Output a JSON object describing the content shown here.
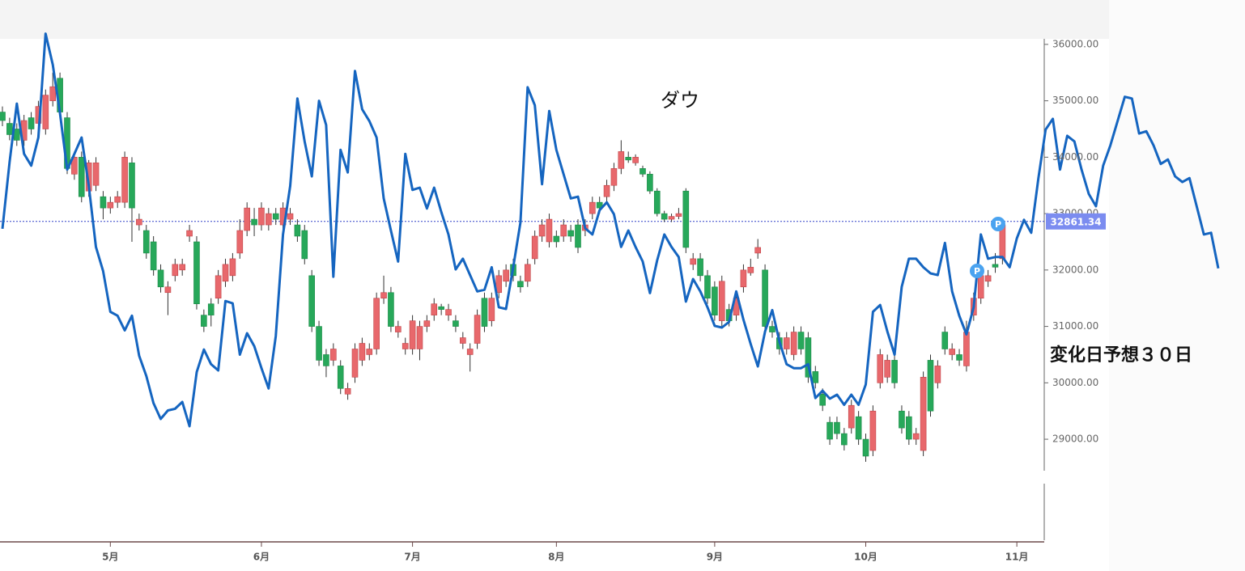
{
  "chart_data": {
    "type": "candlestick",
    "title": "ダウ",
    "annotation": "変化日予想３０日",
    "up_color": "#e8686c",
    "down_color": "#27a85a",
    "ylim": [
      27180,
      36070
    ],
    "yticks": [
      {
        "value": 29000,
        "label": "29000.00"
      },
      {
        "value": 30000,
        "label": "30000.00"
      },
      {
        "value": 31000,
        "label": "31000.00"
      },
      {
        "value": 32000,
        "label": "32000.00"
      },
      {
        "value": 33000,
        "label": "33000.00"
      },
      {
        "value": 34000,
        "label": "34000.00"
      },
      {
        "value": 35000,
        "label": "35000.00"
      },
      {
        "value": 36000,
        "label": "36000.00"
      }
    ],
    "last_price": {
      "value": 32861.34,
      "color": "#7b8cf0"
    },
    "markers": [
      "P",
      "P"
    ],
    "categories": [
      null,
      null,
      null,
      null,
      null,
      null,
      null,
      null,
      null,
      null,
      null,
      null,
      null,
      null,
      null,
      "5月",
      null,
      null,
      null,
      null,
      null,
      null,
      null,
      null,
      null,
      null,
      null,
      null,
      null,
      null,
      null,
      null,
      null,
      null,
      null,
      null,
      "6月",
      null,
      null,
      null,
      null,
      null,
      null,
      null,
      null,
      null,
      null,
      null,
      null,
      null,
      null,
      null,
      null,
      null,
      null,
      null,
      null,
      "7月",
      null,
      null,
      null,
      null,
      null,
      null,
      null,
      null,
      null,
      null,
      null,
      null,
      null,
      null,
      null,
      null,
      null,
      null,
      null,
      "8月",
      null,
      null,
      null,
      null,
      null,
      null,
      null,
      null,
      null,
      null,
      null,
      null,
      null,
      null,
      null,
      null,
      null,
      null,
      null,
      null,
      null,
      "9月",
      null,
      null,
      null,
      null,
      null,
      null,
      null,
      null,
      null,
      null,
      null,
      null,
      null,
      null,
      null,
      null,
      null,
      null,
      null,
      null,
      "10月",
      null,
      null,
      null,
      null,
      null,
      null,
      null,
      null,
      null,
      null,
      null,
      null,
      null,
      null,
      null,
      null,
      null,
      null,
      null,
      null,
      "11月",
      null,
      null,
      null,
      null,
      null,
      null,
      null,
      null,
      null,
      null,
      null,
      null,
      null,
      null,
      null,
      null,
      null,
      null,
      null,
      null,
      null,
      null,
      null,
      null,
      null,
      null,
      null,
      null
    ],
    "open": [
      34800,
      34600,
      34500,
      34300,
      34700,
      34600,
      34500,
      35000,
      35400,
      34700,
      33700,
      34000,
      33400,
      33500,
      33300,
      33100,
      33200,
      33200,
      33900,
      32800,
      32700,
      32500,
      32000,
      31600,
      31900,
      32000,
      32600,
      32500,
      31200,
      31400,
      31500,
      31800,
      31900,
      32300,
      32700,
      32900,
      32800,
      32800,
      33000,
      32800,
      32900,
      32800,
      32700,
      31900,
      31000,
      30500,
      30400,
      30300,
      29800,
      30100,
      30400,
      30500,
      30600,
      31500,
      31600,
      30900,
      30600,
      30600,
      30600,
      31000,
      31200,
      31350,
      31200,
      31100,
      30700,
      30500,
      30700,
      31500,
      31100,
      31600,
      31800,
      32100,
      31800,
      31800,
      32200,
      32600,
      32500,
      32600,
      32600,
      32700,
      32800,
      32700,
      33000,
      33200,
      33300,
      33500,
      33800,
      34000,
      33900,
      33800,
      33700,
      33400,
      33000,
      32900,
      32950,
      33400,
      32100,
      32200,
      31900,
      31700,
      31100,
      31300,
      31200,
      31700,
      31950,
      32300,
      32000,
      31000,
      30800,
      30600,
      30500,
      30900,
      30800,
      30200,
      29800,
      29300,
      29300,
      29100,
      29200,
      29400,
      29000,
      28800,
      30000,
      30100,
      30400,
      29500,
      29400,
      29000,
      28800,
      30400,
      30000,
      30900,
      30500,
      30500,
      30300,
      31200,
      31500,
      31800,
      32100,
      32200,
      null,
      null,
      null,
      null,
      null,
      null,
      null,
      null,
      null,
      null,
      null,
      null,
      null,
      null,
      null,
      null,
      null,
      null,
      null,
      null,
      null,
      null,
      null,
      null,
      null,
      null,
      null,
      null,
      null,
      null
    ],
    "high": [
      34900,
      34700,
      34600,
      34750,
      34800,
      35000,
      35200,
      35500,
      35500,
      34800,
      34100,
      34100,
      33950,
      34000,
      33400,
      33300,
      33400,
      34100,
      34000,
      33000,
      32800,
      32600,
      32100,
      31800,
      32200,
      32200,
      32800,
      32600,
      31300,
      31500,
      32000,
      32200,
      32300,
      32900,
      33200,
      33100,
      33200,
      33100,
      33100,
      33200,
      33100,
      32900,
      32800,
      32000,
      31100,
      30600,
      30700,
      30400,
      30000,
      30700,
      30800,
      30700,
      31600,
      31900,
      31700,
      31100,
      30800,
      31200,
      31100,
      31200,
      31500,
      31400,
      31400,
      31200,
      30900,
      30700,
      31300,
      31600,
      31600,
      32000,
      32100,
      32200,
      31900,
      32200,
      32700,
      32900,
      33000,
      32700,
      32900,
      32800,
      32900,
      32900,
      33300,
      33300,
      33600,
      33900,
      34300,
      34100,
      34050,
      33850,
      33750,
      33450,
      33050,
      33000,
      33100,
      33450,
      32300,
      32300,
      32000,
      31800,
      31900,
      31400,
      31600,
      32100,
      32200,
      32550,
      32100,
      31100,
      30900,
      30900,
      31000,
      31000,
      30900,
      30300,
      29900,
      29400,
      29400,
      29200,
      29700,
      29500,
      29100,
      29600,
      30600,
      30500,
      30500,
      29600,
      29500,
      29200,
      30200,
      30500,
      30400,
      31000,
      30700,
      30600,
      31100,
      31600,
      32000,
      32000,
      32300,
      32900,
      null,
      null,
      null,
      null,
      null,
      null,
      null,
      null,
      null,
      null,
      null,
      null,
      null,
      null,
      null,
      null,
      null,
      null,
      null,
      null,
      null,
      null,
      null,
      null,
      null,
      null,
      null,
      null,
      null,
      null
    ],
    "low": [
      34550,
      34300,
      34200,
      34200,
      34400,
      34500,
      34400,
      34900,
      34700,
      33700,
      33600,
      33200,
      33300,
      33400,
      32900,
      33000,
      33100,
      33100,
      32500,
      32700,
      32200,
      31900,
      31600,
      31200,
      31800,
      31900,
      32500,
      31300,
      30900,
      31000,
      31400,
      31700,
      31800,
      32200,
      32600,
      32600,
      32700,
      32700,
      32800,
      32700,
      32800,
      32500,
      32100,
      30900,
      30300,
      30100,
      30300,
      29800,
      29700,
      30000,
      30300,
      30400,
      30500,
      31400,
      30900,
      30800,
      30500,
      30500,
      30400,
      30900,
      31100,
      31200,
      31100,
      30900,
      30600,
      30200,
      30600,
      30900,
      31000,
      31500,
      31700,
      31800,
      31600,
      31700,
      32100,
      32500,
      32400,
      32400,
      32500,
      32500,
      32300,
      32600,
      32900,
      33000,
      33200,
      33400,
      33700,
      33900,
      33850,
      33650,
      33350,
      32950,
      32850,
      32850,
      32900,
      32300,
      32000,
      31800,
      31400,
      31100,
      31000,
      31000,
      31100,
      31600,
      31900,
      32200,
      30900,
      30800,
      30500,
      30500,
      30400,
      30500,
      30000,
      29900,
      29500,
      28900,
      29000,
      28800,
      29100,
      28900,
      28600,
      28700,
      29900,
      30000,
      29900,
      29100,
      28900,
      28900,
      28700,
      29400,
      29900,
      30500,
      30400,
      30300,
      30200,
      31100,
      31400,
      31700,
      31950,
      32100,
      null,
      null,
      null,
      null,
      null,
      null,
      null,
      null,
      null,
      null,
      null,
      null,
      null,
      null,
      null,
      null,
      null,
      null,
      null,
      null,
      null,
      null,
      null,
      null,
      null,
      null,
      null,
      null,
      null,
      null
    ],
    "close": [
      34650,
      34400,
      34300,
      34650,
      34500,
      34900,
      35100,
      35250,
      34800,
      33800,
      34000,
      33300,
      33900,
      33900,
      33100,
      33200,
      33300,
      34000,
      33100,
      32900,
      32300,
      32000,
      31700,
      31700,
      32100,
      32100,
      32700,
      31400,
      31000,
      31200,
      31900,
      32100,
      32200,
      32700,
      33100,
      32800,
      33100,
      33000,
      32900,
      33100,
      33000,
      32600,
      32200,
      31000,
      30400,
      30300,
      30600,
      29900,
      29900,
      30600,
      30700,
      30600,
      31500,
      31600,
      31000,
      31000,
      30700,
      31100,
      31000,
      31100,
      31400,
      31300,
      31300,
      31000,
      30800,
      30600,
      31200,
      31000,
      31500,
      31900,
      32000,
      31900,
      31700,
      32100,
      32600,
      32800,
      32900,
      32500,
      32800,
      32600,
      32400,
      32800,
      33200,
      33100,
      33500,
      33800,
      34100,
      33950,
      34000,
      33700,
      33400,
      33000,
      32900,
      32950,
      33000,
      32400,
      32200,
      31900,
      31500,
      31200,
      31800,
      31100,
      31500,
      32000,
      32050,
      32400,
      31000,
      30900,
      30600,
      30800,
      30900,
      30600,
      30100,
      30000,
      29600,
      29000,
      29100,
      28900,
      29600,
      29000,
      28700,
      29500,
      30500,
      30400,
      30000,
      29200,
      29000,
      29100,
      30100,
      29500,
      30300,
      30600,
      30600,
      30400,
      30900,
      31500,
      31900,
      31900,
      32050,
      32800,
      null,
      null,
      null,
      null,
      null,
      null,
      null,
      null,
      null,
      null,
      null,
      null,
      null,
      null,
      null,
      null,
      null,
      null,
      null,
      null,
      null,
      null,
      null,
      null,
      null,
      null,
      null,
      null,
      null,
      null
    ],
    "line": {
      "color": "#1565c0",
      "values": [
        32730,
        33920,
        34950,
        34060,
        33850,
        34350,
        36190,
        35640,
        34780,
        33780,
        34060,
        34350,
        33490,
        32410,
        31980,
        31260,
        31190,
        30930,
        31190,
        30480,
        30120,
        29640,
        29360,
        29510,
        29540,
        29660,
        29230,
        30190,
        30590,
        30330,
        30220,
        31450,
        31410,
        30500,
        30880,
        30650,
        30260,
        29900,
        30830,
        32630,
        33490,
        35040,
        34280,
        33660,
        35000,
        34570,
        31880,
        34130,
        33730,
        35530,
        34850,
        34640,
        34350,
        33270,
        32700,
        32150,
        34060,
        33420,
        33460,
        33090,
        33460,
        33030,
        32630,
        32010,
        32200,
        31910,
        31620,
        31650,
        32050,
        31340,
        31310,
        32050,
        32840,
        35240,
        34920,
        33520,
        34820,
        34130,
        33700,
        33270,
        33300,
        32740,
        32630,
        33060,
        33200,
        32990,
        32410,
        32700,
        32410,
        32150,
        31590,
        32170,
        32630,
        32410,
        32230,
        31440,
        31840,
        31620,
        31340,
        31010,
        30980,
        31080,
        31620,
        31120,
        30690,
        30290,
        30910,
        31290,
        30730,
        30330,
        30260,
        30260,
        30330,
        29730,
        29860,
        29720,
        29790,
        29610,
        29790,
        29610,
        29970,
        31260,
        31380,
        30910,
        30500,
        31700,
        32200,
        32200,
        32050,
        31940,
        31910,
        32480,
        31620,
        31190,
        30860,
        31340,
        32630,
        32200,
        32230,
        32230,
        32050,
        32560,
        32890,
        32660,
        33630,
        34490,
        34680,
        33780,
        34380,
        34280,
        33780,
        33350,
        33130,
        33850,
        34210,
        34640,
        35070,
        35040,
        34420,
        34460,
        34210,
        33880,
        33960,
        33660,
        33560,
        33630,
        33130,
        32630,
        32660,
        32030
      ]
    }
  }
}
